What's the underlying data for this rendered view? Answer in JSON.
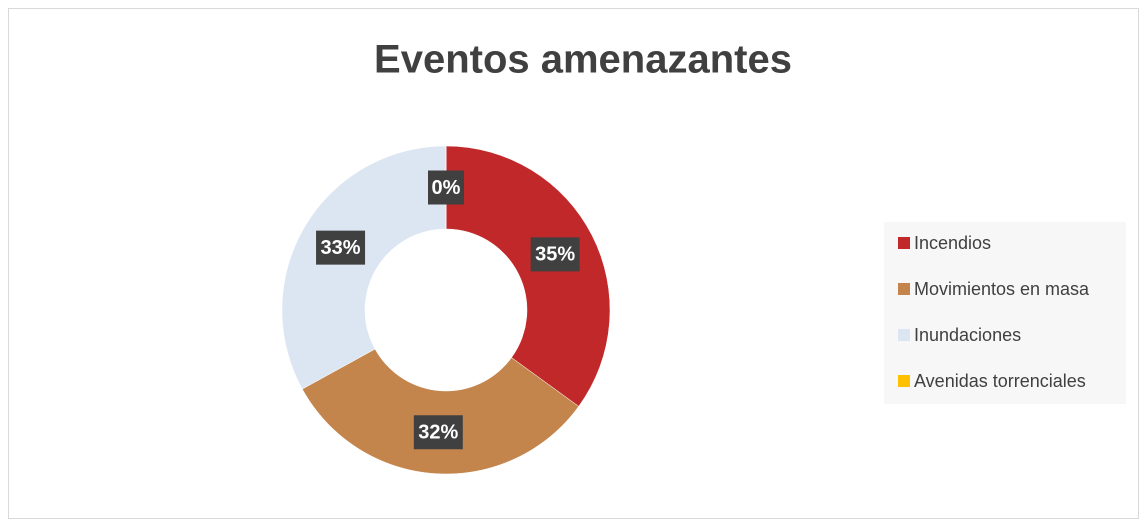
{
  "chart_data": {
    "type": "donut",
    "title": "Eventos amenazantes",
    "categories": [
      "Incendios",
      "Movimientos en masa",
      "Inundaciones",
      "Avenidas torrenciales"
    ],
    "values": [
      35,
      32,
      33,
      0
    ],
    "value_labels": [
      "35%",
      "32%",
      "33%",
      "0%"
    ],
    "colors": [
      "#c0282a",
      "#c4854c",
      "#dce6f2",
      "#ffc000"
    ],
    "legend": "right"
  }
}
